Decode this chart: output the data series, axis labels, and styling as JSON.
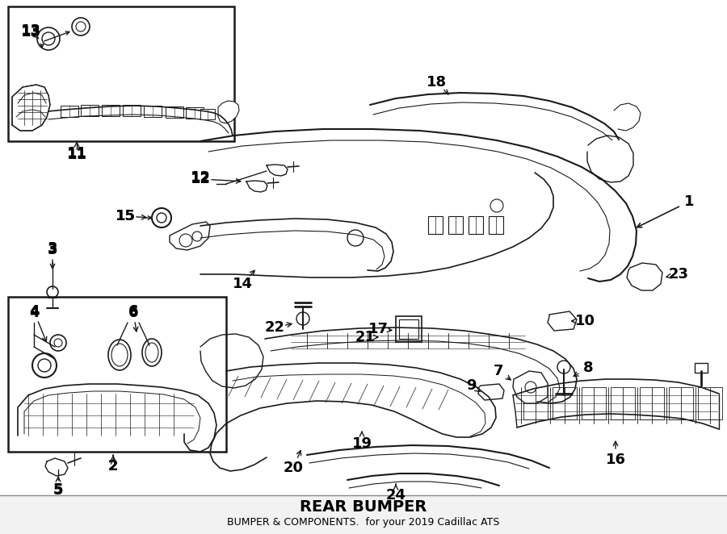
{
  "title": "REAR BUMPER",
  "subtitle": "BUMPER & COMPONENTS",
  "vehicle": "for your 2019 Cadillac ATS",
  "bg_color": "#ffffff",
  "line_color": "#1a1a1a",
  "text_color": "#000000",
  "fig_width": 9.0,
  "fig_height": 6.62,
  "dpi": 100,
  "label_fontsize": 13,
  "label_fontsize_small": 11
}
